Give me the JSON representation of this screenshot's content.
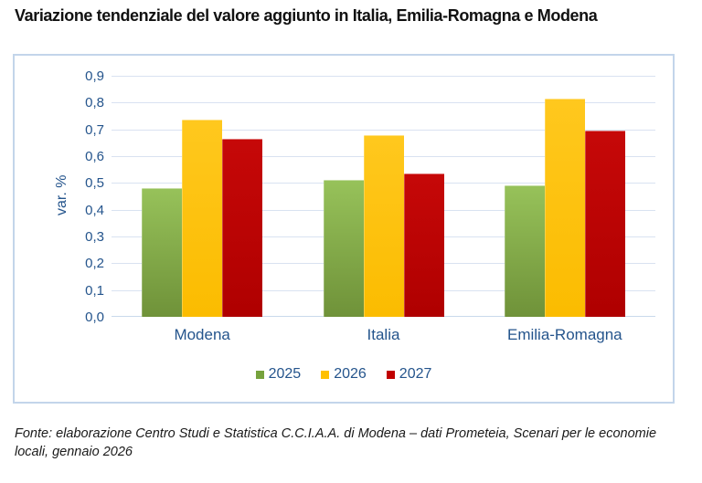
{
  "title": "Variazione tendenziale del valore aggiunto in Italia, Emilia-Romagna e Modena",
  "chart_data": {
    "type": "bar",
    "title": "Variazione tendenziale del valore aggiunto in Italia, Emilia-Romagna e Modena",
    "categories": [
      "Modena",
      "Italia",
      "Emilia-Romagna"
    ],
    "series": [
      {
        "name": "2025",
        "values": [
          0.48,
          0.51,
          0.49
        ],
        "color_top": "#97C25A",
        "color_bottom": "#6F9239",
        "legend_color": "#76A23D"
      },
      {
        "name": "2026",
        "values": [
          0.735,
          0.68,
          0.815
        ],
        "color_top": "#FFC81E",
        "color_bottom": "#FBBC00",
        "legend_color": "#FFC000"
      },
      {
        "name": "2027",
        "values": [
          0.665,
          0.535,
          0.695
        ],
        "color_top": "#C60808",
        "color_bottom": "#AF0000",
        "legend_color": "#C00000"
      }
    ],
    "xlabel": "",
    "ylabel": "var. %",
    "ylim": [
      0,
      0.9
    ],
    "ytick_step": 0.1,
    "ytick_labels": [
      "0,0",
      "0,1",
      "0,2",
      "0,3",
      "0,4",
      "0,5",
      "0,6",
      "0,7",
      "0,8",
      "0,9"
    ],
    "grid": true,
    "legend_position": "bottom"
  },
  "colors": {
    "axis_text": "#24548C",
    "panel_border": "#C3D5EA",
    "gridline": "#D9E2F1",
    "green_2025": "#76A23D",
    "yellow_2026": "#FFC000",
    "red_2027": "#C00000"
  },
  "footer": {
    "lines": [
      "Fonte: elaborazione Centro Studi e Statistica C.C.I.A.A. di Modena – dati Prometeia, Scenari per le economie",
      "locali, gennaio 2026"
    ],
    "full_text": "Fonte: elaborazione Centro Studi e Statistica C.C.I.A.A. di Modena – dati Prometeia, Scenari per le economie locali, gennaio 2026"
  }
}
